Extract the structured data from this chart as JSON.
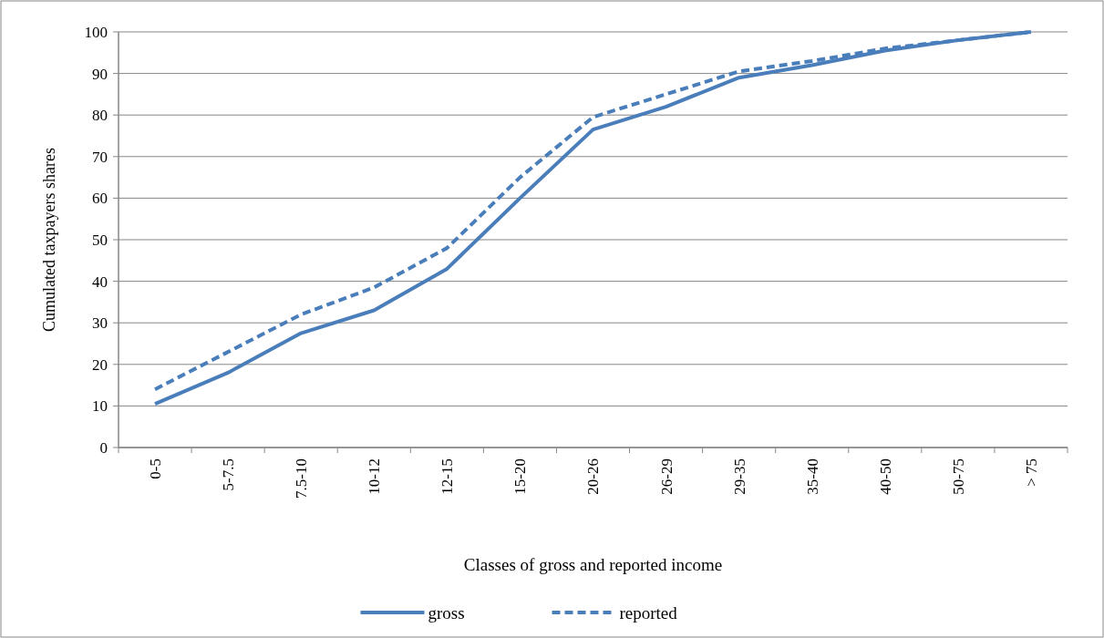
{
  "chart_data": {
    "type": "line",
    "xlabel": "Classes of gross and reported income",
    "ylabel": "Cumulated taxpayers shares",
    "categories": [
      "0-5",
      "5-7.5",
      "7.5-10",
      "10-12",
      "12-15",
      "15-20",
      "20-26",
      "26-29",
      "29-35",
      "35-40",
      "40-50",
      "50-75",
      "> 75"
    ],
    "series": [
      {
        "name": "gross",
        "color": "#4a7ebb",
        "line_style": "solid",
        "values": [
          10.5,
          18,
          27.5,
          33,
          43,
          60,
          76.5,
          82,
          89,
          92,
          95.5,
          98,
          100
        ]
      },
      {
        "name": "reported",
        "color": "#4a7ebb",
        "line_style": "dashed",
        "values": [
          14,
          23,
          32,
          38.5,
          48,
          65,
          79.5,
          85,
          90.5,
          93,
          96,
          98,
          100
        ]
      }
    ],
    "ylim": [
      0,
      100
    ],
    "yticks": [
      0,
      10,
      20,
      30,
      40,
      50,
      60,
      70,
      80,
      90,
      100
    ],
    "grid": "y",
    "legend": "bottom"
  }
}
